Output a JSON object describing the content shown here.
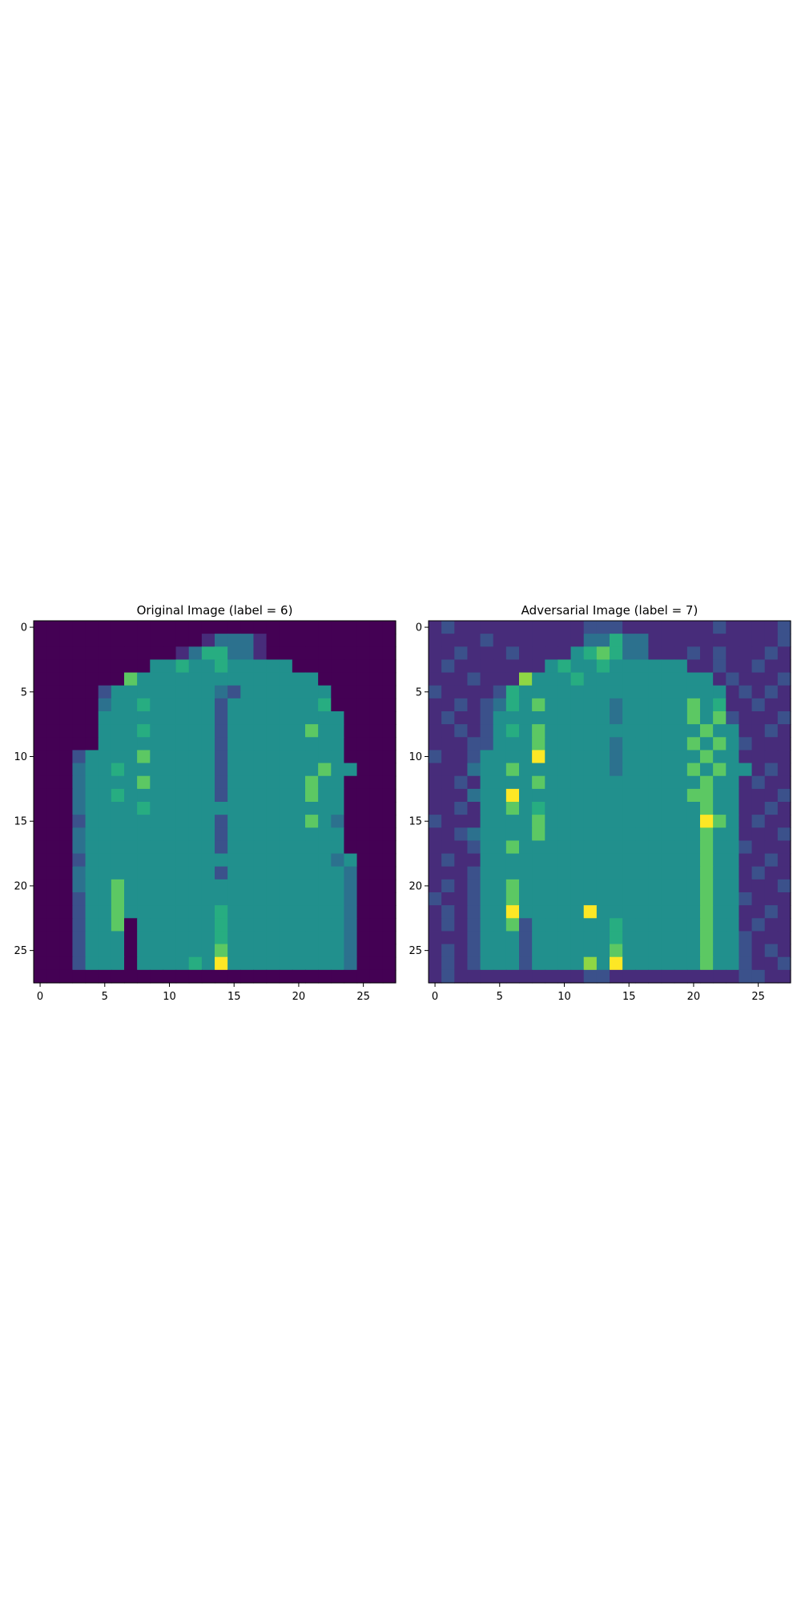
{
  "chart_data": [
    {
      "type": "heatmap",
      "title": "Original Image (label = 6)",
      "xlabel": "",
      "ylabel": "",
      "x_ticks": [
        0,
        5,
        10,
        15,
        20,
        25
      ],
      "y_ticks": [
        0,
        5,
        10,
        15,
        20,
        25
      ],
      "xlim": [
        -0.5,
        27.5
      ],
      "ylim": [
        27.5,
        -0.5
      ],
      "colormap": "viridis",
      "value_range": [
        0,
        9
      ],
      "rows": [
        "0000000000000000000000000000",
        "0000000000000133310000000000",
        "0000000000013553310000000000",
        "0000000004454454444400000000",
        "0000000644444444444444000000",
        "0000024444444432444444400000",
        "0000034454444424444444500000",
        "0000044444444424444444440000",
        "0000044454444424444446440000",
        "0000044444444424444444440000",
        "0002444464444424444444440000",
        "0003445444444424444444644000",
        "0003444464444424444446440000",
        "0003445444444424444446440000",
        "0003444454444444444444440000",
        "0002444444444424444446430000",
        "0003444444444424444444440000",
        "0003444444444424444444440000",
        "0002444444444444444444434000",
        "0003444444444424444444443000",
        "0003446444444444444444443000",
        "0002446444444444444444443000",
        "0002446444444454444444443000",
        "0002446044444454444444443000",
        "0002444044444454444444443000",
        "0002444044444464444444443000",
        "0002444044445494444444443000",
        "0000000000000000000000000000"
      ]
    },
    {
      "type": "heatmap",
      "title": "Adversarial Image (label = 7)",
      "xlabel": "",
      "ylabel": "",
      "x_ticks": [
        0,
        5,
        10,
        15,
        20,
        25
      ],
      "y_ticks": [
        0,
        5,
        10,
        15,
        20,
        25
      ],
      "xlim": [
        -0.5,
        27.5
      ],
      "ylim": [
        27.5,
        -0.5
      ],
      "colormap": "viridis",
      "value_range": [
        0,
        9
      ],
      "rows": [
        "1211111111112221111111211112",
        "1111211111113353311111111112",
        "1121112111145653311121211121",
        "1211111114544544444411211211",
        "1112111744454444444444121112",
        "2111125444444444444444412121",
        "1121235464444434444464511211",
        "1211244444444434444464621112",
        "1121245464444444444446441121",
        "1112244464444434444464642111",
        "2112444494444434444446441111",
        "1113446444444434444464644121",
        "1121444464444444444446441211",
        "1113449444444444444466441112",
        "1121446454444444444446441121",
        "2111444464444444444449641211",
        "1123444464444444444446441112",
        "1112446444444444444446442111",
        "1211444444444444444446441121",
        "1112444444444444444446441211",
        "1212446444444444444446441112",
        "2112446444444444444446442111",
        "1212449444449444444446441121",
        "1212446244444454444446441211",
        "1112444244444454444446442111",
        "1212444244444464444446442121",
        "1212444244447494444446442112",
        "1211111111112211111111112211"
      ]
    }
  ],
  "palette": [
    "#440154",
    "#472c7a",
    "#3b518b",
    "#2c718e",
    "#21908d",
    "#27ad81",
    "#5cc863",
    "#8fd744",
    "#c7e020",
    "#fde725"
  ]
}
